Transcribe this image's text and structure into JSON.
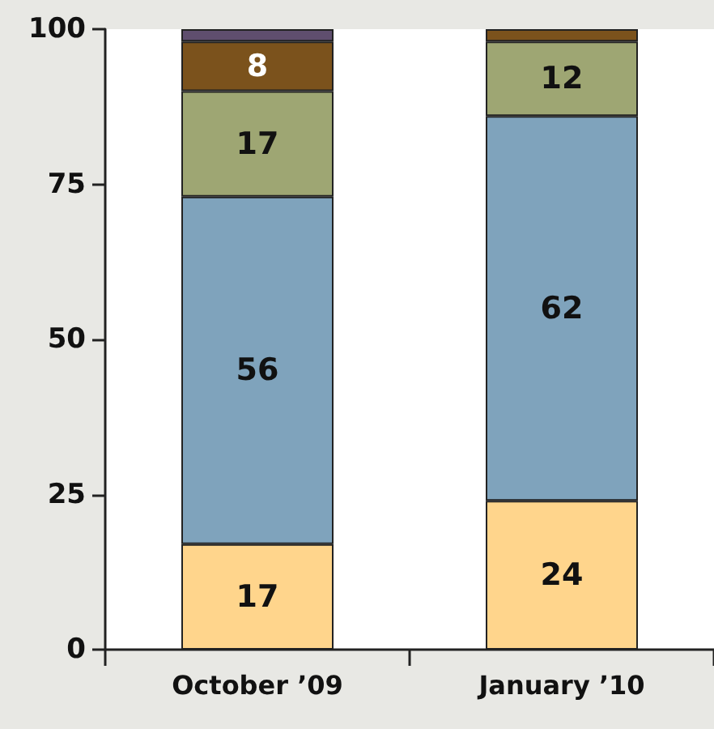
{
  "chart_data": {
    "type": "bar",
    "stacked": true,
    "categories": [
      "October ’09",
      "January ’10"
    ],
    "series": [
      {
        "color": "#ffd58c",
        "values": [
          17,
          24
        ],
        "value_labels": [
          "17",
          "24"
        ]
      },
      {
        "color": "#7fa3bc",
        "values": [
          56,
          62
        ],
        "value_labels": [
          "56",
          "62"
        ]
      },
      {
        "color": "#9ea673",
        "values": [
          17,
          12
        ],
        "value_labels": [
          "17",
          "12"
        ]
      },
      {
        "color": "#7b521c",
        "values": [
          8,
          2
        ],
        "value_labels": [
          "8",
          null
        ]
      },
      {
        "color": "#5f4e6e",
        "values": [
          2,
          null
        ],
        "value_labels": [
          null,
          null
        ]
      }
    ],
    "ylim": [
      0,
      100
    ],
    "yticks": [
      0,
      25,
      50,
      75,
      100
    ],
    "grid": false
  }
}
